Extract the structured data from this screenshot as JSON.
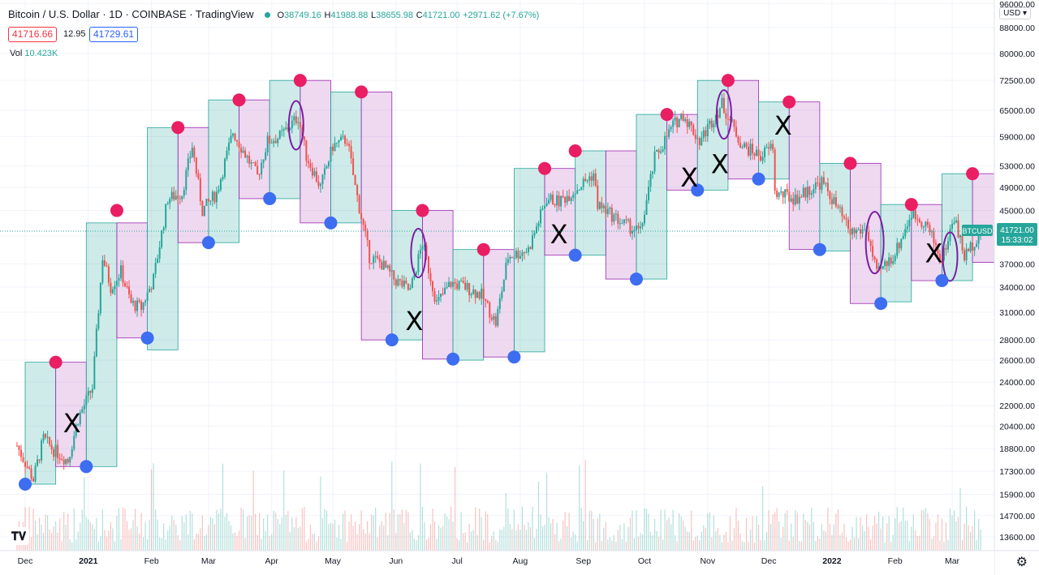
{
  "header": {
    "symbol_title": "Bitcoin / U.S. Dollar · 1D · COINBASE · TradingView",
    "open_label": "O",
    "open": "38749.16",
    "high_label": "H",
    "high": "41988.88",
    "low_label": "L",
    "low": "38655.98",
    "close_label": "C",
    "close": "41721.00",
    "change": "+2971.62 (+7.67%)",
    "status_color": "#26a69a"
  },
  "trade": {
    "sell_price": "41716.66",
    "spread": "12.95",
    "buy_price": "41729.61"
  },
  "volume": {
    "label": "Vol",
    "value": "10.423K"
  },
  "currency": "USD ▾",
  "price_tag": {
    "symbol": "BTCUSD",
    "price": "41721.00",
    "countdown": "15:33:02"
  },
  "colors": {
    "up": "#26a69a",
    "down": "#ef5350",
    "pink_dot": "#e91e63",
    "blue_dot": "#2962ff"
  },
  "icons": {
    "logo": "tradingview-logo-icon",
    "settings": "gear-icon"
  },
  "chart_data": {
    "type": "candlestick",
    "scale": "log",
    "ylim": [
      13000,
      96000
    ],
    "y_ticks": [
      96000,
      88000,
      80000,
      72500,
      65000,
      59000,
      53000,
      49000,
      45000,
      41000,
      37000,
      34000,
      31000,
      28000,
      26000,
      24000,
      22000,
      20400,
      18800,
      17300,
      15900,
      14700,
      13600
    ],
    "x_ticks": [
      "Dec",
      "2021",
      "Feb",
      "Mar",
      "Apr",
      "May",
      "Jun",
      "Jul",
      "Aug",
      "Sep",
      "Oct",
      "Nov",
      "Dec",
      "2022",
      "Feb",
      "Mar"
    ],
    "x_tick_dates": [
      "2020-12-01",
      "2021-01-01",
      "2021-02-01",
      "2021-03-01",
      "2021-04-01",
      "2021-05-01",
      "2021-06-01",
      "2021-07-01",
      "2021-08-01",
      "2021-09-01",
      "2021-10-01",
      "2021-11-01",
      "2021-12-01",
      "2022-01-01",
      "2022-02-01",
      "2022-03-01"
    ],
    "date_range": [
      "2020-11-27",
      "2022-03-15"
    ],
    "path_points": [
      [
        "2020-11-27",
        19000
      ],
      [
        "2020-12-05",
        16800
      ],
      [
        "2020-12-10",
        19500
      ],
      [
        "2020-12-15",
        18700
      ],
      [
        "2020-12-22",
        18000
      ],
      [
        "2020-12-27",
        21000
      ],
      [
        "2021-01-03",
        23500
      ],
      [
        "2021-01-08",
        38000
      ],
      [
        "2021-01-12",
        34000
      ],
      [
        "2021-01-17",
        36000
      ],
      [
        "2021-01-22",
        32000
      ],
      [
        "2021-01-27",
        31500
      ],
      [
        "2021-02-02",
        35000
      ],
      [
        "2021-02-09",
        47000
      ],
      [
        "2021-02-16",
        48000
      ],
      [
        "2021-02-21",
        57000
      ],
      [
        "2021-02-26",
        45000
      ],
      [
        "2021-03-05",
        48000
      ],
      [
        "2021-03-13",
        60000
      ],
      [
        "2021-03-25",
        51000
      ],
      [
        "2021-03-30",
        58000
      ],
      [
        "2021-04-05",
        59000
      ],
      [
        "2021-04-14",
        63500
      ],
      [
        "2021-04-18",
        55000
      ],
      [
        "2021-04-25",
        49000
      ],
      [
        "2021-05-01",
        57000
      ],
      [
        "2021-05-08",
        58500
      ],
      [
        "2021-05-12",
        49000
      ],
      [
        "2021-05-19",
        38000
      ],
      [
        "2021-05-25",
        37000
      ],
      [
        "2021-05-31",
        35000
      ],
      [
        "2021-06-08",
        33500
      ],
      [
        "2021-06-14",
        40000
      ],
      [
        "2021-06-21",
        32000
      ],
      [
        "2021-06-28",
        34500
      ],
      [
        "2021-07-05",
        34000
      ],
      [
        "2021-07-13",
        33000
      ],
      [
        "2021-07-20",
        29800
      ],
      [
        "2021-07-26",
        38000
      ],
      [
        "2021-08-05",
        39000
      ],
      [
        "2021-08-14",
        47000
      ],
      [
        "2021-08-20",
        46500
      ],
      [
        "2021-08-28",
        48500
      ],
      [
        "2021-09-06",
        51500
      ],
      [
        "2021-09-08",
        46000
      ],
      [
        "2021-09-20",
        43000
      ],
      [
        "2021-09-29",
        41500
      ],
      [
        "2021-10-06",
        54500
      ],
      [
        "2021-10-15",
        61500
      ],
      [
        "2021-10-20",
        64000
      ],
      [
        "2021-10-28",
        58000
      ],
      [
        "2021-11-08",
        66500
      ],
      [
        "2021-11-18",
        57000
      ],
      [
        "2021-11-27",
        55000
      ],
      [
        "2021-12-03",
        57000
      ],
      [
        "2021-12-04",
        48000
      ],
      [
        "2021-12-14",
        47000
      ],
      [
        "2021-12-27",
        50000
      ],
      [
        "2022-01-01",
        47000
      ],
      [
        "2022-01-10",
        41500
      ],
      [
        "2022-01-18",
        42000
      ],
      [
        "2022-01-23",
        35500
      ],
      [
        "2022-02-01",
        38500
      ],
      [
        "2022-02-09",
        44500
      ],
      [
        "2022-02-16",
        43000
      ],
      [
        "2022-02-24",
        37500
      ],
      [
        "2022-03-02",
        44000
      ],
      [
        "2022-03-07",
        38000
      ],
      [
        "2022-03-15",
        41721
      ]
    ],
    "bands": [
      {
        "start": "2020-12-01",
        "end": "2020-12-16",
        "low": 16500,
        "high": 25800,
        "color": "green"
      },
      {
        "start": "2020-12-16",
        "end": "2020-12-31",
        "low": 17600,
        "high": 25800,
        "color": "pink"
      },
      {
        "start": "2020-12-31",
        "end": "2021-01-15",
        "low": 17600,
        "high": 43000,
        "color": "green"
      },
      {
        "start": "2021-01-15",
        "end": "2021-01-30",
        "low": 28200,
        "high": 43000,
        "color": "pink"
      },
      {
        "start": "2021-01-30",
        "end": "2021-02-14",
        "low": 27000,
        "high": 61000,
        "color": "green"
      },
      {
        "start": "2021-02-14",
        "end": "2021-03-01",
        "low": 40000,
        "high": 61000,
        "color": "pink"
      },
      {
        "start": "2021-03-01",
        "end": "2021-03-16",
        "low": 40000,
        "high": 67500,
        "color": "green"
      },
      {
        "start": "2021-03-16",
        "end": "2021-03-31",
        "low": 47000,
        "high": 67500,
        "color": "pink"
      },
      {
        "start": "2021-03-31",
        "end": "2021-04-15",
        "low": 47000,
        "high": 72500,
        "color": "green"
      },
      {
        "start": "2021-04-15",
        "end": "2021-04-30",
        "low": 43000,
        "high": 72500,
        "color": "pink"
      },
      {
        "start": "2021-04-30",
        "end": "2021-05-15",
        "low": 43000,
        "high": 69500,
        "color": "green"
      },
      {
        "start": "2021-05-15",
        "end": "2021-05-30",
        "low": 28000,
        "high": 69500,
        "color": "pink"
      },
      {
        "start": "2021-05-30",
        "end": "2021-06-14",
        "low": 28000,
        "high": 45000,
        "color": "green"
      },
      {
        "start": "2021-06-14",
        "end": "2021-06-29",
        "low": 26100,
        "high": 45000,
        "color": "pink"
      },
      {
        "start": "2021-06-29",
        "end": "2021-07-14",
        "low": 26000,
        "high": 39000,
        "color": "green"
      },
      {
        "start": "2021-07-14",
        "end": "2021-07-29",
        "low": 26300,
        "high": 39000,
        "color": "pink"
      },
      {
        "start": "2021-07-29",
        "end": "2021-08-13",
        "low": 26800,
        "high": 52500,
        "color": "green"
      },
      {
        "start": "2021-08-13",
        "end": "2021-08-28",
        "low": 38200,
        "high": 52500,
        "color": "pink"
      },
      {
        "start": "2021-08-28",
        "end": "2021-09-12",
        "low": 38200,
        "high": 56000,
        "color": "green"
      },
      {
        "start": "2021-09-12",
        "end": "2021-09-27",
        "low": 35000,
        "high": 56000,
        "color": "pink"
      },
      {
        "start": "2021-09-27",
        "end": "2021-10-12",
        "low": 35000,
        "high": 64000,
        "color": "green"
      },
      {
        "start": "2021-10-12",
        "end": "2021-10-27",
        "low": 48500,
        "high": 64000,
        "color": "pink"
      },
      {
        "start": "2021-10-27",
        "end": "2021-11-11",
        "low": 48500,
        "high": 72500,
        "color": "green"
      },
      {
        "start": "2021-11-11",
        "end": "2021-11-26",
        "low": 50500,
        "high": 72500,
        "color": "pink"
      },
      {
        "start": "2021-11-26",
        "end": "2021-12-11",
        "low": 50500,
        "high": 67000,
        "color": "green"
      },
      {
        "start": "2021-12-11",
        "end": "2021-12-26",
        "low": 39000,
        "high": 67000,
        "color": "pink"
      },
      {
        "start": "2021-12-26",
        "end": "2022-01-10",
        "low": 38800,
        "high": 53500,
        "color": "green"
      },
      {
        "start": "2022-01-10",
        "end": "2022-01-25",
        "low": 32000,
        "high": 53500,
        "color": "pink"
      },
      {
        "start": "2022-01-25",
        "end": "2022-02-09",
        "low": 32200,
        "high": 46000,
        "color": "green"
      },
      {
        "start": "2022-02-09",
        "end": "2022-02-24",
        "low": 34800,
        "high": 46000,
        "color": "pink"
      },
      {
        "start": "2022-02-24",
        "end": "2022-03-11",
        "low": 34800,
        "high": 51500,
        "color": "green"
      },
      {
        "start": "2022-03-11",
        "end": "2022-03-26",
        "low": 37200,
        "high": 51500,
        "color": "pink"
      }
    ],
    "pink_markers": [
      [
        "2020-12-16",
        25800
      ],
      [
        "2021-01-15",
        45000
      ],
      [
        "2021-02-14",
        61000
      ],
      [
        "2021-03-16",
        67500
      ],
      [
        "2021-04-15",
        72500
      ],
      [
        "2021-05-15",
        69500
      ],
      [
        "2021-06-14",
        45000
      ],
      [
        "2021-07-14",
        39000
      ],
      [
        "2021-08-13",
        52500
      ],
      [
        "2021-08-28",
        56000
      ],
      [
        "2021-10-12",
        64000
      ],
      [
        "2021-11-11",
        72500
      ],
      [
        "2021-12-11",
        67000
      ],
      [
        "2022-01-10",
        53500
      ],
      [
        "2022-02-09",
        46000
      ],
      [
        "2022-03-11",
        51500
      ]
    ],
    "blue_markers": [
      [
        "2020-12-01",
        16500
      ],
      [
        "2020-12-31",
        17600
      ],
      [
        "2021-01-30",
        28200
      ],
      [
        "2021-03-01",
        40000
      ],
      [
        "2021-03-31",
        47000
      ],
      [
        "2021-04-30",
        43000
      ],
      [
        "2021-05-30",
        28000
      ],
      [
        "2021-06-29",
        26100
      ],
      [
        "2021-07-29",
        26300
      ],
      [
        "2021-08-28",
        38200
      ],
      [
        "2021-09-27",
        35000
      ],
      [
        "2021-10-27",
        48500
      ],
      [
        "2021-11-26",
        50500
      ],
      [
        "2021-12-26",
        39000
      ],
      [
        "2022-01-25",
        32000
      ],
      [
        "2022-02-24",
        34800
      ],
      [
        "2022-03-26",
        37200
      ]
    ],
    "x_annotations": [
      [
        "2020-12-24",
        20500
      ],
      [
        "2021-06-10",
        29800
      ],
      [
        "2021-08-20",
        41000
      ],
      [
        "2021-10-23",
        50500
      ],
      [
        "2021-11-07",
        53000
      ],
      [
        "2021-12-08",
        61000
      ],
      [
        "2022-02-20",
        38200
      ]
    ],
    "x_annotation_text": "X",
    "ellipses": [
      [
        "2021-04-13",
        61500,
        5
      ],
      [
        "2021-06-12",
        38500,
        5
      ],
      [
        "2021-11-09",
        64000,
        5
      ],
      [
        "2022-01-22",
        40000,
        6
      ],
      [
        "2022-02-28",
        38000,
        5
      ]
    ],
    "last_price": 41721
  }
}
